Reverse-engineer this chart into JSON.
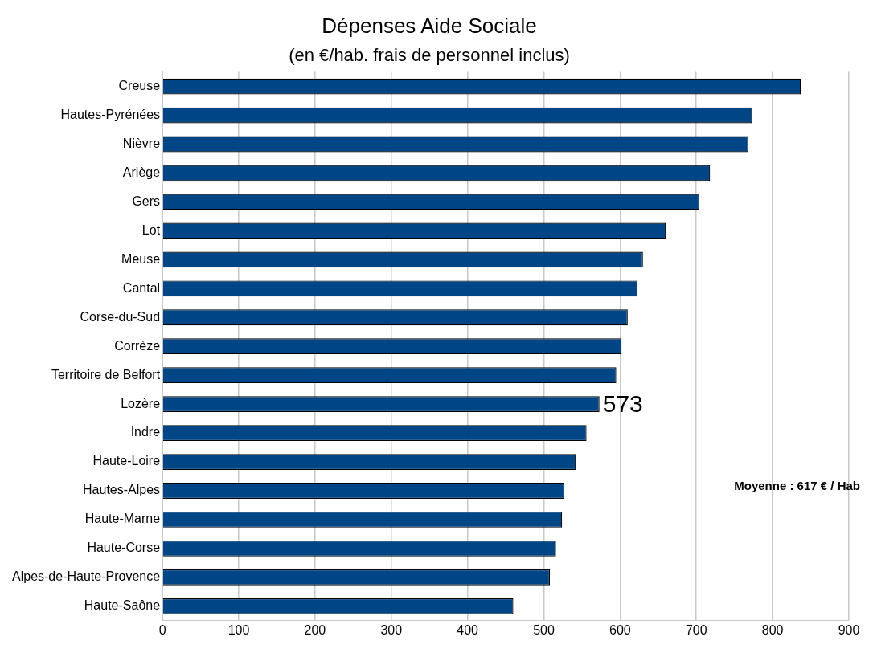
{
  "chart_data": {
    "type": "bar",
    "orientation": "horizontal",
    "title": "Dépenses Aide Sociale",
    "subtitle": "(en €/hab. frais de personnel inclus)",
    "categories": [
      "Creuse",
      "Hautes-Pyrénées",
      "Nièvre",
      "Ariège",
      "Gers",
      "Lot",
      "Meuse",
      "Cantal",
      "Corse-du-Sud",
      "Corrèze",
      "Territoire de Belfort",
      "Lozère",
      "Indre",
      "Haute-Loire",
      "Hautes-Alpes",
      "Haute-Marne",
      "Haute-Corse",
      "Alpes-de-Haute-Provence",
      "Haute-Saône"
    ],
    "values": [
      837,
      773,
      768,
      718,
      704,
      660,
      630,
      623,
      610,
      602,
      595,
      573,
      556,
      542,
      527,
      524,
      516,
      508,
      460
    ],
    "color": "#004586",
    "xlim": [
      0,
      900
    ],
    "xticks": [
      0,
      100,
      200,
      300,
      400,
      500,
      600,
      700,
      800,
      900
    ],
    "grid": "x",
    "legend": false,
    "annotations": [
      {
        "text": "573",
        "x": 573,
        "y": "Lozère"
      },
      "Moyenne : 617 € / Hab"
    ]
  }
}
